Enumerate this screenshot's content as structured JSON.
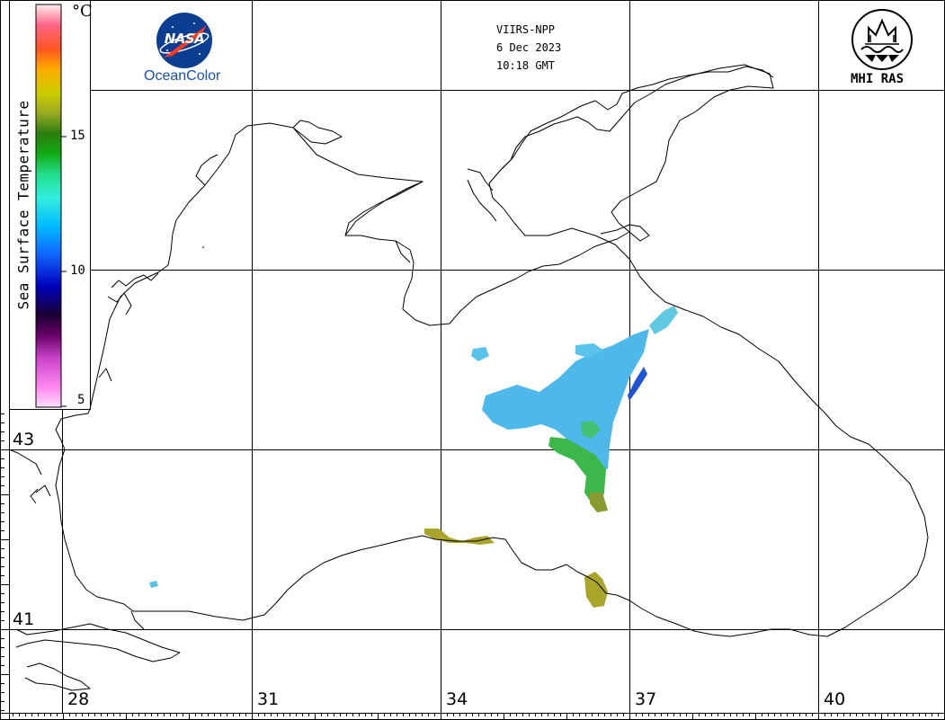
{
  "header": {
    "sensor": "VIIRS-NPP",
    "date": "6 Dec 2023",
    "time": "10:18 GMT"
  },
  "logos": {
    "left_brand": "NASA",
    "left_caption": "OceanColor",
    "right_caption": "MHI RAS",
    "left_icon": "nasa-meatball-icon",
    "right_icon": "mhi-ras-emblem-icon"
  },
  "colorbar": {
    "title": "Sea Surface Temperature",
    "unit": "°C",
    "ticks": [
      "15",
      "10",
      "5"
    ],
    "tick_values": [
      15,
      10,
      5
    ],
    "min": 4.5,
    "max": 19.5,
    "stops": [
      "#ff99ee",
      "#cc44cc",
      "#660066",
      "#1a0033",
      "#0000bb",
      "#1166ff",
      "#00bbff",
      "#33eedd",
      "#22dd88",
      "#11aa11",
      "#2d7d10",
      "#99aa22",
      "#cccc00",
      "#ffaa00",
      "#ff5522",
      "#ff6688",
      "#ffdddd"
    ]
  },
  "grid": {
    "latitudes": [
      "43",
      "41"
    ],
    "longitudes": [
      "28",
      "31",
      "34",
      "37",
      "40"
    ]
  },
  "colors": {
    "coastline": "#000000",
    "grid": "#000000",
    "sst_warm": "#a8a52a",
    "sst_mid": "#3cb84a",
    "sst_cool": "#4fb8ea",
    "sst_cold": "#1f55d4"
  }
}
